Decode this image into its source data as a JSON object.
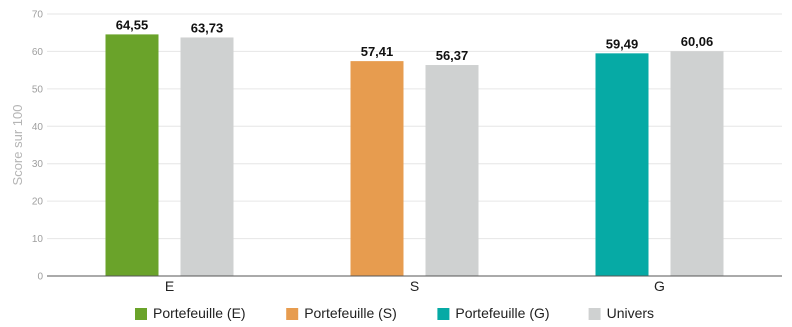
{
  "chart_data": {
    "type": "bar",
    "title": "",
    "xlabel": "",
    "ylabel": "Score sur 100",
    "ylim": [
      0,
      70
    ],
    "yticks": [
      0,
      10,
      20,
      30,
      40,
      50,
      60,
      70
    ],
    "grid": true,
    "legend_position": "bottom",
    "categories": [
      "E",
      "S",
      "G"
    ],
    "groups": [
      {
        "category": "E",
        "bars": [
          {
            "series": "Portefeuille (E)",
            "value": 64.55,
            "label": "64,55",
            "color": "#6aa32a"
          },
          {
            "series": "Univers",
            "value": 63.73,
            "label": "63,73",
            "color": "#cfd1d1"
          }
        ]
      },
      {
        "category": "S",
        "bars": [
          {
            "series": "Portefeuille (S)",
            "value": 57.41,
            "label": "57,41",
            "color": "#e79c4f"
          },
          {
            "series": "Univers",
            "value": 56.37,
            "label": "56,37",
            "color": "#cfd1d1"
          }
        ]
      },
      {
        "category": "G",
        "bars": [
          {
            "series": "Portefeuille (G)",
            "value": 59.49,
            "label": "59,49",
            "color": "#06aaa5"
          },
          {
            "series": "Univers",
            "value": 60.06,
            "label": "60,06",
            "color": "#cfd1d1"
          }
        ]
      }
    ],
    "legend": [
      {
        "name": "Portefeuille (E)",
        "color": "#6aa32a"
      },
      {
        "name": "Portefeuille (S)",
        "color": "#e79c4f"
      },
      {
        "name": "Portefeuille (G)",
        "color": "#06aaa5"
      },
      {
        "name": "Univers",
        "color": "#cfd1d1"
      }
    ]
  }
}
